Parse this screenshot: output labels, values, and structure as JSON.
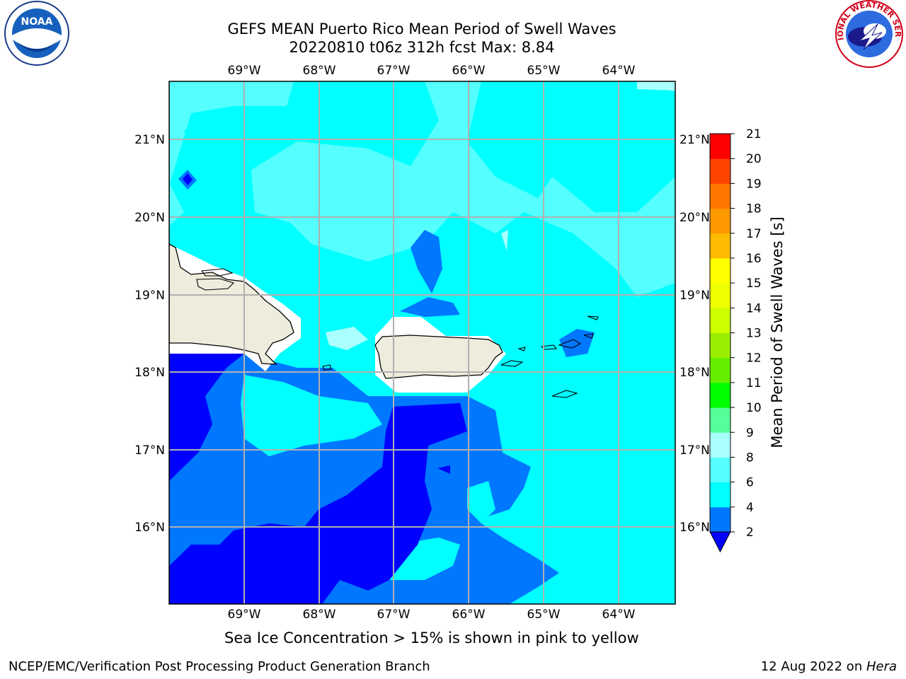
{
  "title": {
    "line1": "GEFS MEAN Puerto Rico Mean Period of Swell Waves",
    "line2": "20220810 t06z 312h fcst   Max: 8.84"
  },
  "map": {
    "longitude_ticks": [
      "69°W",
      "68°W",
      "67°W",
      "66°W",
      "65°W",
      "64°W"
    ],
    "latitude_ticks": [
      "21°N",
      "20°N",
      "19°N",
      "18°N",
      "17°N",
      "16°N"
    ],
    "land_color": "#eeecdc",
    "no_data_color": "#ffffff"
  },
  "colorbar": {
    "label": "Mean Period of Swell Waves [s]",
    "ticks": [
      "2",
      "4",
      "6",
      "8",
      "9",
      "10",
      "11",
      "12",
      "13",
      "14",
      "15",
      "16",
      "17",
      "18",
      "19",
      "20",
      "21"
    ],
    "colors": [
      "#0000ff",
      "#0077ff",
      "#00ffff",
      "#55ffff",
      "#aaffff",
      "#55ff99",
      "#00ff00",
      "#66ee00",
      "#99ee00",
      "#ccff00",
      "#eeff00",
      "#ffff00",
      "#ffbb00",
      "#ff9900",
      "#ff7700",
      "#ff4400",
      "#ff0000"
    ]
  },
  "logos": {
    "noaa": "NOAA",
    "nws": "NATIONAL WEATHER SERVICE"
  },
  "ice_note": "Sea Ice Concentration > 15% is shown in pink to yellow",
  "footer": {
    "left": "NCEP/EMC/Verification Post Processing Product Generation Branch",
    "right_date": "12 Aug 2022 on ",
    "right_host": "Hera"
  }
}
